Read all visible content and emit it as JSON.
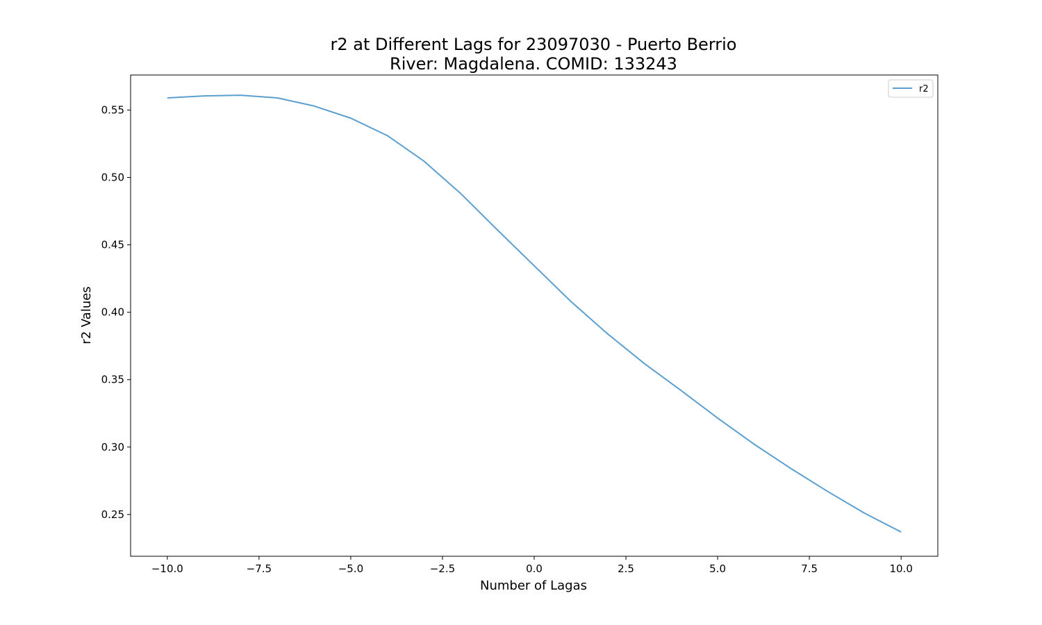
{
  "chart_data": {
    "type": "line",
    "title": "r2 at Different Lags for 23097030 - Puerto Berrio",
    "subtitle": "River: Magdalena. COMID: 133243",
    "xlabel": "Number of Lagas",
    "ylabel": "r2 Values",
    "xlim": [
      -11.0,
      11.0
    ],
    "ylim": [
      0.219,
      0.576
    ],
    "grid": false,
    "legend_position": "top-right",
    "x_ticks": [
      -10.0,
      -7.5,
      -5.0,
      -2.5,
      0.0,
      2.5,
      5.0,
      7.5,
      10.0
    ],
    "x_tick_labels": [
      "−10.0",
      "−7.5",
      "−5.0",
      "−2.5",
      "0.0",
      "2.5",
      "5.0",
      "7.5",
      "10.0"
    ],
    "y_ticks": [
      0.25,
      0.3,
      0.35,
      0.4,
      0.45,
      0.5,
      0.55
    ],
    "y_tick_labels": [
      "0.25",
      "0.30",
      "0.35",
      "0.40",
      "0.45",
      "0.50",
      "0.55"
    ],
    "series": [
      {
        "name": "r2",
        "color": "#5b9fd0",
        "x": [
          -10,
          -9,
          -8,
          -7,
          -6,
          -5,
          -4,
          -3,
          -2,
          -1,
          0,
          1,
          2,
          3,
          4,
          5,
          6,
          7,
          8,
          9,
          10
        ],
        "y": [
          0.559,
          0.5605,
          0.561,
          0.559,
          0.553,
          0.544,
          0.531,
          0.512,
          0.488,
          0.461,
          0.4345,
          0.408,
          0.384,
          0.362,
          0.342,
          0.3215,
          0.302,
          0.284,
          0.267,
          0.251,
          0.237
        ]
      }
    ]
  }
}
